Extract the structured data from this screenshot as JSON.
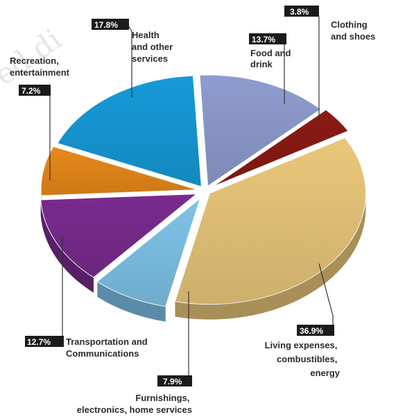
{
  "chart_data": {
    "type": "pie",
    "title": "",
    "slices": [
      {
        "label": "Food and drink",
        "value": 13.7,
        "pct_text": "13.7%",
        "color": "#8F9CCF"
      },
      {
        "label": "Clothing and shoes",
        "value": 3.8,
        "pct_text": "3.8%",
        "color": "#8B1A14"
      },
      {
        "label": "Living expenses, combustibles, energy",
        "value": 36.9,
        "pct_text": "36.9%",
        "color": "#E9C77A"
      },
      {
        "label": "Furnishings, electronics, home services",
        "value": 7.9,
        "pct_text": "7.9%",
        "color": "#7EC3E8"
      },
      {
        "label": "Transportation and Communications",
        "value": 12.7,
        "pct_text": "12.7%",
        "color": "#7A2B8E"
      },
      {
        "label": "Recreation, entertainment",
        "value": 7.2,
        "pct_text": "7.2%",
        "color": "#E8891A"
      },
      {
        "label": "Health and other services",
        "value": 17.8,
        "pct_text": "17.8%",
        "color": "#169AD8"
      }
    ],
    "legend": "none",
    "labels": "callouts around pie"
  },
  "labels": {
    "food": [
      "Food and",
      "drink"
    ],
    "clothing": [
      "Clothing",
      "and shoes"
    ],
    "living": [
      "Living expenses,",
      "combustibles,",
      "energy"
    ],
    "furnishings": [
      "Furnishings,",
      "electronics, home services"
    ],
    "transport": [
      "Transportation and",
      "Communications"
    ],
    "recreation": [
      "Recreation,",
      "entertainment"
    ],
    "health": [
      "Health",
      "and other",
      "services"
    ]
  },
  "watermark": "ed di"
}
